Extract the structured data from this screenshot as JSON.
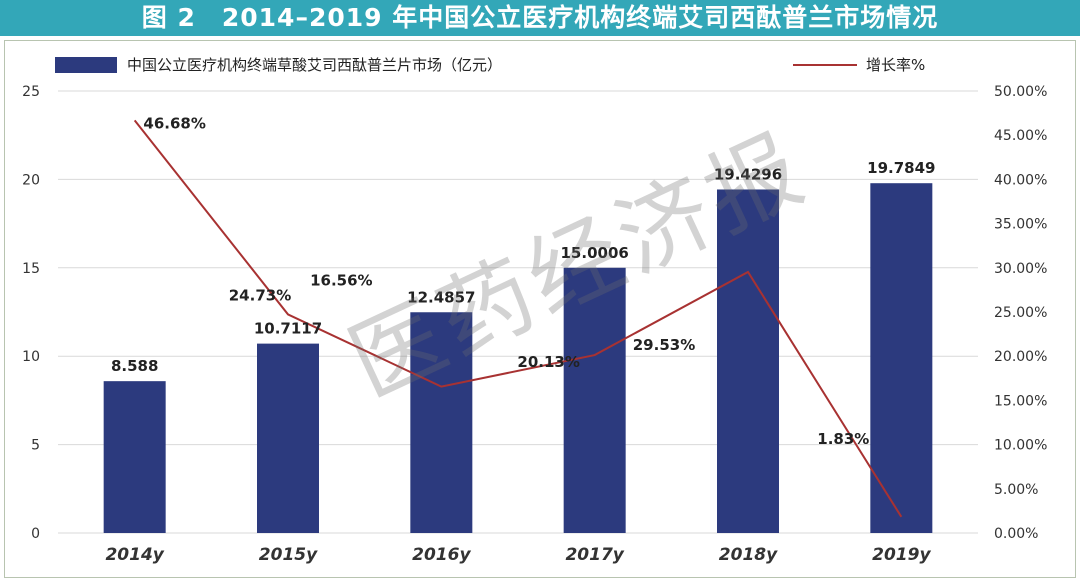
{
  "figure_title": "图 2　2014–2019 年中国公立医疗机构终端艾司西酞普兰市场情况",
  "watermark": "医药经济报",
  "colors": {
    "banner": "#33a7b8",
    "bar": "#2c3a7e",
    "line": "#a83232",
    "grid": "#d9d9d9",
    "axis_text": "#333333"
  },
  "chart_data": {
    "type": "bar",
    "categories": [
      "2014y",
      "2015y",
      "2016y",
      "2017y",
      "2018y",
      "2019y"
    ],
    "series": [
      {
        "name": "中国公立医疗机构终端草酸艾司西酞普兰片市场（亿元）",
        "type": "bar",
        "axis": "left",
        "values": [
          8.588,
          10.7117,
          12.4857,
          15.0006,
          19.4296,
          19.7849
        ],
        "labels": [
          "8.588",
          "10.7117",
          "12.4857",
          "15.0006",
          "19.4296",
          "19.7849"
        ]
      },
      {
        "name": "增长率%",
        "type": "line",
        "axis": "right",
        "values": [
          46.68,
          24.73,
          16.56,
          20.13,
          29.53,
          1.83
        ],
        "labels": [
          "46.68%",
          "24.73%",
          "16.56%",
          "20.13%",
          "29.53%",
          "1.83%"
        ]
      }
    ],
    "y_left": {
      "min": 0,
      "max": 25,
      "ticks": [
        "0",
        "5",
        "10",
        "15",
        "20",
        "25"
      ]
    },
    "y_right": {
      "min": 0,
      "max": 50,
      "ticks": [
        "0.00%",
        "5.00%",
        "10.00%",
        "15.00%",
        "20.00%",
        "25.00%",
        "30.00%",
        "35.00%",
        "40.00%",
        "45.00%",
        "50.00%"
      ]
    },
    "grid": true,
    "legend": "top"
  }
}
